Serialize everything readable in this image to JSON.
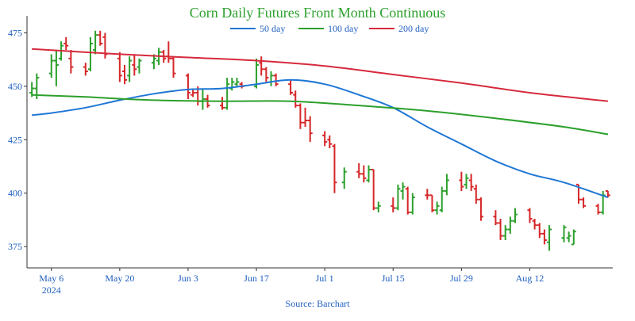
{
  "chart_data": {
    "type": "ohlc",
    "title": "Corn Daily Futures Front Month Continuous",
    "source": "Source: Barchart",
    "xlabel": "",
    "ylabel": "",
    "ylim": [
      365,
      480
    ],
    "xlim": [
      "2024-05-02",
      "2024-08-28"
    ],
    "yticks": [
      375,
      400,
      425,
      450,
      475
    ],
    "xticks": [
      {
        "date": "2024-05-06",
        "label": "May 6",
        "sublabel": "2024"
      },
      {
        "date": "2024-05-20",
        "label": "May 20",
        "sublabel": ""
      },
      {
        "date": "2024-06-03",
        "label": "Jun 3",
        "sublabel": ""
      },
      {
        "date": "2024-06-17",
        "label": "Jun 17",
        "sublabel": ""
      },
      {
        "date": "2024-07-01",
        "label": "Jul 1",
        "sublabel": ""
      },
      {
        "date": "2024-07-15",
        "label": "Jul 15",
        "sublabel": ""
      },
      {
        "date": "2024-07-29",
        "label": "Jul 29",
        "sublabel": ""
      },
      {
        "date": "2024-08-12",
        "label": "Aug 12",
        "sublabel": ""
      }
    ],
    "colors": {
      "up": "#2ca02c",
      "down": "#d62728",
      "ma50": "#1f77d4",
      "ma100": "#2ca02c",
      "ma200": "#d62a3d",
      "title": "#2ca02c",
      "axis_text": "#1f5fbf"
    },
    "legend": {
      "placement": "top-center",
      "entries": [
        "50 day",
        "100 day",
        "200 day"
      ]
    },
    "grid": false,
    "bars": [
      {
        "date": "2024-05-02",
        "open": 447,
        "high": 452,
        "low": 445,
        "close": 449,
        "dir": "up"
      },
      {
        "date": "2024-05-03",
        "open": 449,
        "high": 456,
        "low": 444,
        "close": 454,
        "dir": "up"
      },
      {
        "date": "2024-05-06",
        "open": 456,
        "high": 465,
        "low": 454,
        "close": 462,
        "dir": "up"
      },
      {
        "date": "2024-05-07",
        "open": 462,
        "high": 467,
        "low": 450,
        "close": 460,
        "dir": "up"
      },
      {
        "date": "2024-05-08",
        "open": 463,
        "high": 471,
        "low": 462,
        "close": 469,
        "dir": "up"
      },
      {
        "date": "2024-05-09",
        "open": 470,
        "high": 473,
        "low": 467,
        "close": 469,
        "dir": "down"
      },
      {
        "date": "2024-05-10",
        "open": 463,
        "high": 467,
        "low": 456,
        "close": 459,
        "dir": "down"
      },
      {
        "date": "2024-05-13",
        "open": 459,
        "high": 461,
        "low": 455,
        "close": 457,
        "dir": "down"
      },
      {
        "date": "2024-05-14",
        "open": 458,
        "high": 473,
        "low": 457,
        "close": 470,
        "dir": "up"
      },
      {
        "date": "2024-05-15",
        "open": 467,
        "high": 476,
        "low": 465,
        "close": 474,
        "dir": "up"
      },
      {
        "date": "2024-05-16",
        "open": 474,
        "high": 476,
        "low": 469,
        "close": 470,
        "dir": "down"
      },
      {
        "date": "2024-05-17",
        "open": 473,
        "high": 475,
        "low": 463,
        "close": 465,
        "dir": "down"
      },
      {
        "date": "2024-05-20",
        "open": 463,
        "high": 466,
        "low": 452,
        "close": 455,
        "dir": "down"
      },
      {
        "date": "2024-05-21",
        "open": 457,
        "high": 460,
        "low": 451,
        "close": 453,
        "dir": "down"
      },
      {
        "date": "2024-05-22",
        "open": 455,
        "high": 464,
        "low": 452,
        "close": 462,
        "dir": "up"
      },
      {
        "date": "2024-05-23",
        "open": 460,
        "high": 465,
        "low": 455,
        "close": 458,
        "dir": "down"
      },
      {
        "date": "2024-05-24",
        "open": 459,
        "high": 463,
        "low": 456,
        "close": 462,
        "dir": "up"
      },
      {
        "date": "2024-05-27",
        "open": 461,
        "high": 465,
        "low": 458,
        "close": 463,
        "dir": "up"
      },
      {
        "date": "2024-05-28",
        "open": 462,
        "high": 468,
        "low": 460,
        "close": 466,
        "dir": "up"
      },
      {
        "date": "2024-05-29",
        "open": 466,
        "high": 467,
        "low": 461,
        "close": 463,
        "dir": "down"
      },
      {
        "date": "2024-05-30",
        "open": 464,
        "high": 471,
        "low": 461,
        "close": 463,
        "dir": "down"
      },
      {
        "date": "2024-05-31",
        "open": 463,
        "high": 464,
        "low": 454,
        "close": 456,
        "dir": "down"
      },
      {
        "date": "2024-06-03",
        "open": 455,
        "high": 456,
        "low": 444,
        "close": 447,
        "dir": "down"
      },
      {
        "date": "2024-06-04",
        "open": 446,
        "high": 449,
        "low": 445,
        "close": 447,
        "dir": "down"
      },
      {
        "date": "2024-06-05",
        "open": 447,
        "high": 450,
        "low": 441,
        "close": 443,
        "dir": "down"
      },
      {
        "date": "2024-06-06",
        "open": 443,
        "high": 449,
        "low": 439,
        "close": 444,
        "dir": "up"
      },
      {
        "date": "2024-06-07",
        "open": 444,
        "high": 446,
        "low": 440,
        "close": 441,
        "dir": "down"
      },
      {
        "date": "2024-06-10",
        "open": 441,
        "high": 445,
        "low": 439,
        "close": 440,
        "dir": "down"
      },
      {
        "date": "2024-06-11",
        "open": 440,
        "high": 454,
        "low": 439,
        "close": 451,
        "dir": "up"
      },
      {
        "date": "2024-06-12",
        "open": 449,
        "high": 454,
        "low": 448,
        "close": 452,
        "dir": "up"
      },
      {
        "date": "2024-06-13",
        "open": 451,
        "high": 454,
        "low": 450,
        "close": 452,
        "dir": "up"
      },
      {
        "date": "2024-06-14",
        "open": 451,
        "high": 452,
        "low": 449,
        "close": 450,
        "dir": "down"
      },
      {
        "date": "2024-06-17",
        "open": 450,
        "high": 463,
        "low": 449,
        "close": 460,
        "dir": "up"
      },
      {
        "date": "2024-06-18",
        "open": 461,
        "high": 464,
        "low": 455,
        "close": 458,
        "dir": "down"
      },
      {
        "date": "2024-06-19",
        "open": 458,
        "high": 459,
        "low": 452,
        "close": 454,
        "dir": "down"
      },
      {
        "date": "2024-06-20",
        "open": 452,
        "high": 457,
        "low": 450,
        "close": 455,
        "dir": "up"
      },
      {
        "date": "2024-06-21",
        "open": 455,
        "high": 456,
        "low": 450,
        "close": 451,
        "dir": "down"
      },
      {
        "date": "2024-06-24",
        "open": 451,
        "high": 453,
        "low": 446,
        "close": 447,
        "dir": "down"
      },
      {
        "date": "2024-06-25",
        "open": 446,
        "high": 448,
        "low": 440,
        "close": 441,
        "dir": "down"
      },
      {
        "date": "2024-06-26",
        "open": 441,
        "high": 442,
        "low": 430,
        "close": 433,
        "dir": "down"
      },
      {
        "date": "2024-06-27",
        "open": 433,
        "high": 440,
        "low": 431,
        "close": 434,
        "dir": "down"
      },
      {
        "date": "2024-06-28",
        "open": 434,
        "high": 436,
        "low": 424,
        "close": 428,
        "dir": "down"
      },
      {
        "date": "2024-07-01",
        "open": 427,
        "high": 429,
        "low": 422,
        "close": 424,
        "dir": "down"
      },
      {
        "date": "2024-07-02",
        "open": 425,
        "high": 427,
        "low": 421,
        "close": 423,
        "dir": "down"
      },
      {
        "date": "2024-07-03",
        "open": 422,
        "high": 423,
        "low": 400,
        "close": 405,
        "dir": "down"
      },
      {
        "date": "2024-07-05",
        "open": 405,
        "high": 412,
        "low": 402,
        "close": 410,
        "dir": "up"
      },
      {
        "date": "2024-07-08",
        "open": 410,
        "high": 414,
        "low": 407,
        "close": 409,
        "dir": "down"
      },
      {
        "date": "2024-07-09",
        "open": 409,
        "high": 413,
        "low": 405,
        "close": 407,
        "dir": "down"
      },
      {
        "date": "2024-07-10",
        "open": 406,
        "high": 413,
        "low": 405,
        "close": 411,
        "dir": "up"
      },
      {
        "date": "2024-07-11",
        "open": 411,
        "high": 411,
        "low": 392,
        "close": 393,
        "dir": "down"
      },
      {
        "date": "2024-07-12",
        "open": 393,
        "high": 396,
        "low": 391,
        "close": 394,
        "dir": "up"
      },
      {
        "date": "2024-07-15",
        "open": 394,
        "high": 398,
        "low": 391,
        "close": 393,
        "dir": "down"
      },
      {
        "date": "2024-07-16",
        "open": 393,
        "high": 404,
        "low": 392,
        "close": 402,
        "dir": "up"
      },
      {
        "date": "2024-07-17",
        "open": 401,
        "high": 405,
        "low": 397,
        "close": 403,
        "dir": "up"
      },
      {
        "date": "2024-07-18",
        "open": 402,
        "high": 403,
        "low": 390,
        "close": 391,
        "dir": "down"
      },
      {
        "date": "2024-07-19",
        "open": 391,
        "high": 400,
        "low": 390,
        "close": 398,
        "dir": "up"
      },
      {
        "date": "2024-07-22",
        "open": 399,
        "high": 402,
        "low": 397,
        "close": 399,
        "dir": "down"
      },
      {
        "date": "2024-07-23",
        "open": 399,
        "high": 399,
        "low": 391,
        "close": 392,
        "dir": "down"
      },
      {
        "date": "2024-07-24",
        "open": 392,
        "high": 396,
        "low": 390,
        "close": 394,
        "dir": "up"
      },
      {
        "date": "2024-07-25",
        "open": 392,
        "high": 403,
        "low": 391,
        "close": 401,
        "dir": "up"
      },
      {
        "date": "2024-07-26",
        "open": 401,
        "high": 409,
        "low": 399,
        "close": 406,
        "dir": "up"
      },
      {
        "date": "2024-07-29",
        "open": 406,
        "high": 410,
        "low": 401,
        "close": 403,
        "dir": "down"
      },
      {
        "date": "2024-07-30",
        "open": 404,
        "high": 409,
        "low": 402,
        "close": 407,
        "dir": "up"
      },
      {
        "date": "2024-07-31",
        "open": 406,
        "high": 409,
        "low": 401,
        "close": 403,
        "dir": "down"
      },
      {
        "date": "2024-08-01",
        "open": 402,
        "high": 404,
        "low": 395,
        "close": 397,
        "dir": "down"
      },
      {
        "date": "2024-08-02",
        "open": 397,
        "high": 398,
        "low": 387,
        "close": 389,
        "dir": "down"
      },
      {
        "date": "2024-08-05",
        "open": 389,
        "high": 392,
        "low": 385,
        "close": 386,
        "dir": "down"
      },
      {
        "date": "2024-08-06",
        "open": 386,
        "high": 388,
        "low": 378,
        "close": 380,
        "dir": "down"
      },
      {
        "date": "2024-08-07",
        "open": 380,
        "high": 385,
        "low": 378,
        "close": 383,
        "dir": "up"
      },
      {
        "date": "2024-08-08",
        "open": 383,
        "high": 389,
        "low": 381,
        "close": 387,
        "dir": "up"
      },
      {
        "date": "2024-08-09",
        "open": 387,
        "high": 393,
        "low": 386,
        "close": 390,
        "dir": "up"
      },
      {
        "date": "2024-08-12",
        "open": 392,
        "high": 393,
        "low": 386,
        "close": 388,
        "dir": "down"
      },
      {
        "date": "2024-08-13",
        "open": 387,
        "high": 388,
        "low": 383,
        "close": 385,
        "dir": "down"
      },
      {
        "date": "2024-08-14",
        "open": 385,
        "high": 386,
        "low": 379,
        "close": 381,
        "dir": "down"
      },
      {
        "date": "2024-08-15",
        "open": 381,
        "high": 383,
        "low": 376,
        "close": 378,
        "dir": "down"
      },
      {
        "date": "2024-08-16",
        "open": 377,
        "high": 385,
        "low": 373,
        "close": 383,
        "dir": "up"
      },
      {
        "date": "2024-08-19",
        "open": 379,
        "high": 385,
        "low": 377,
        "close": 384,
        "dir": "up"
      },
      {
        "date": "2024-08-20",
        "open": 379,
        "high": 382,
        "low": 377,
        "close": 380,
        "dir": "up"
      },
      {
        "date": "2024-08-21",
        "open": 376,
        "high": 383,
        "low": 376,
        "close": 382,
        "dir": "up"
      },
      {
        "date": "2024-08-22",
        "open": 404,
        "high": 404,
        "low": 395,
        "close": 397,
        "dir": "down"
      },
      {
        "date": "2024-08-23",
        "open": 397,
        "high": 398,
        "low": 393,
        "close": 394,
        "dir": "down"
      },
      {
        "date": "2024-08-26",
        "open": 394,
        "high": 395,
        "low": 390,
        "close": 391,
        "dir": "down"
      },
      {
        "date": "2024-08-27",
        "open": 391,
        "high": 401,
        "low": 390,
        "close": 399,
        "dir": "up"
      },
      {
        "date": "2024-08-28",
        "open": 401,
        "high": 401,
        "low": 398,
        "close": 399,
        "dir": "down"
      }
    ],
    "series": [
      {
        "name": "50 day",
        "color": "#1f77d4",
        "points": [
          [
            "2024-05-02",
            436.5
          ],
          [
            "2024-05-06",
            437.5
          ],
          [
            "2024-05-13",
            440
          ],
          [
            "2024-05-20",
            443.5
          ],
          [
            "2024-05-27",
            446.5
          ],
          [
            "2024-06-03",
            448.5
          ],
          [
            "2024-06-10",
            449
          ],
          [
            "2024-06-17",
            451
          ],
          [
            "2024-06-24",
            453
          ],
          [
            "2024-07-01",
            451
          ],
          [
            "2024-07-08",
            446
          ],
          [
            "2024-07-15",
            440
          ],
          [
            "2024-07-22",
            431
          ],
          [
            "2024-07-29",
            423
          ],
          [
            "2024-08-05",
            415
          ],
          [
            "2024-08-12",
            409
          ],
          [
            "2024-08-19",
            405
          ],
          [
            "2024-08-28",
            398
          ]
        ]
      },
      {
        "name": "100 day",
        "color": "#2ca02c",
        "points": [
          [
            "2024-05-02",
            446
          ],
          [
            "2024-05-13",
            445
          ],
          [
            "2024-05-27",
            443.5
          ],
          [
            "2024-06-10",
            443
          ],
          [
            "2024-06-24",
            443
          ],
          [
            "2024-07-08",
            441
          ],
          [
            "2024-07-22",
            438.5
          ],
          [
            "2024-08-05",
            435
          ],
          [
            "2024-08-19",
            431
          ],
          [
            "2024-08-28",
            427.5
          ]
        ]
      },
      {
        "name": "200 day",
        "color": "#d62a3d",
        "points": [
          [
            "2024-05-02",
            467.5
          ],
          [
            "2024-05-20",
            465
          ],
          [
            "2024-06-03",
            463.5
          ],
          [
            "2024-06-17",
            462
          ],
          [
            "2024-07-01",
            459.5
          ],
          [
            "2024-07-15",
            455.5
          ],
          [
            "2024-07-29",
            451.5
          ],
          [
            "2024-08-12",
            447
          ],
          [
            "2024-08-28",
            443
          ]
        ]
      }
    ]
  }
}
